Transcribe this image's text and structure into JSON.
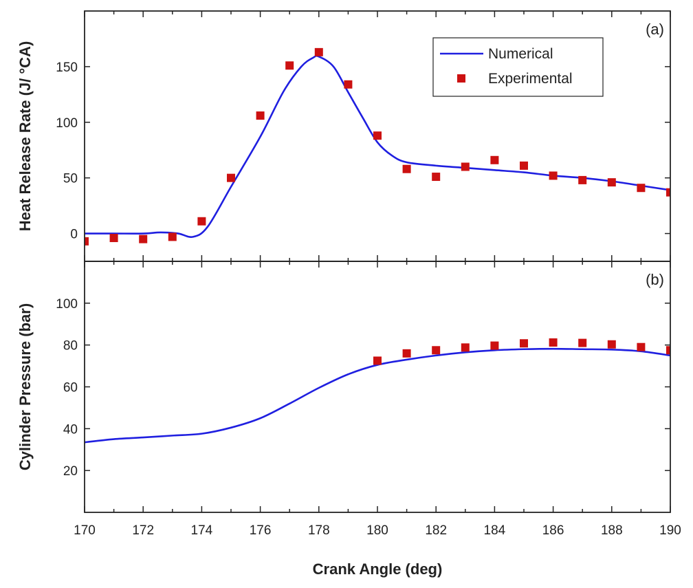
{
  "chart_data": [
    {
      "type": "line",
      "panel_label": "(a)",
      "ylabel": "Heat Release Rate (J/ °CA)",
      "xlim": [
        170,
        190
      ],
      "ylim": [
        -25,
        200
      ],
      "yticks": [
        0,
        50,
        100,
        150
      ],
      "grid": false,
      "legend": {
        "position": "top-right",
        "entries": [
          {
            "name": "Numerical",
            "style": "line"
          },
          {
            "name": "Experimental",
            "style": "marker"
          }
        ]
      },
      "series": [
        {
          "name": "Numerical",
          "style": "line",
          "color": "#1f1fe0",
          "x": [
            170,
            171,
            172,
            172.6,
            173.2,
            173.7,
            174.2,
            175,
            176,
            176.8,
            177.4,
            177.8,
            178,
            178.5,
            179,
            179.5,
            180,
            180.5,
            181,
            182,
            183,
            184,
            185,
            186,
            187,
            188,
            189,
            190
          ],
          "y": [
            0,
            0,
            0,
            1,
            0,
            -3,
            6,
            42,
            87,
            128,
            150,
            158,
            159,
            150,
            127,
            104,
            82,
            70,
            64,
            61,
            59,
            57,
            55,
            52,
            50,
            47,
            43,
            39
          ]
        },
        {
          "name": "Experimental",
          "style": "marker",
          "color": "#cc1111",
          "x": [
            170,
            171,
            172,
            173,
            174,
            175,
            176,
            177,
            178,
            179,
            180,
            181,
            182,
            183,
            184,
            185,
            186,
            187,
            188,
            189,
            190
          ],
          "y": [
            -7,
            -4,
            -5,
            -3,
            11,
            50,
            106,
            151,
            163,
            134,
            88,
            58,
            51,
            60,
            66,
            61,
            52,
            48,
            46,
            41,
            37
          ]
        }
      ]
    },
    {
      "type": "line",
      "panel_label": "(b)",
      "xlabel": "Crank Angle (deg)",
      "ylabel": "Cylinder Pressure (bar)",
      "xlim": [
        170,
        190
      ],
      "ylim": [
        0,
        120
      ],
      "xticks": [
        170,
        172,
        174,
        176,
        178,
        180,
        182,
        184,
        186,
        188,
        190
      ],
      "yticks": [
        20,
        40,
        60,
        80,
        100
      ],
      "grid": false,
      "series": [
        {
          "name": "Numerical",
          "style": "line",
          "color": "#1f1fe0",
          "x": [
            170,
            171,
            172,
            173,
            174,
            175,
            176,
            177,
            178,
            179,
            180,
            181,
            182,
            183,
            184,
            185,
            186,
            187,
            188,
            189,
            190
          ],
          "y": [
            33.5,
            35,
            35.8,
            36.7,
            37.6,
            40.5,
            45,
            52,
            59.5,
            66,
            70.5,
            73,
            75,
            76.5,
            77.5,
            78,
            78.2,
            78,
            77.8,
            77,
            75
          ]
        },
        {
          "name": "Experimental",
          "style": "marker",
          "color": "#cc1111",
          "x": [
            180,
            181,
            182,
            183,
            184,
            185,
            186,
            187,
            188,
            189,
            190
          ],
          "y": [
            72.5,
            76,
            77.5,
            78.8,
            79.7,
            80.8,
            81.2,
            81,
            80.3,
            79,
            77.5
          ]
        }
      ]
    }
  ]
}
